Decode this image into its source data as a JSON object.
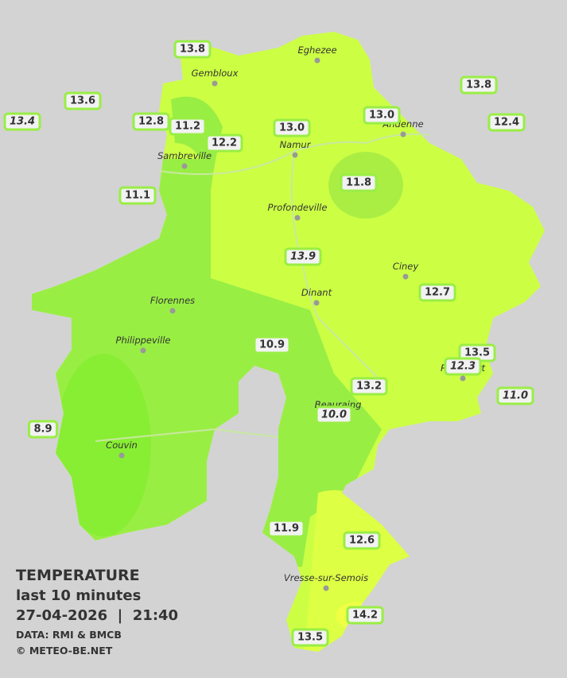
{
  "legend": {
    "title": "TEMPERATURE",
    "subtitle": "last 10 minutes",
    "datetime": "27-04-2026  |  21:40",
    "source": "DATA: RMI & BMCB",
    "copyright": "© METEO-BE.NET"
  },
  "towns": [
    "Eghezee",
    "Gembloux",
    "Andenne",
    "Namur",
    "Sambreville",
    "Profondeville",
    "Ciney",
    "Dinant",
    "Florennes",
    "Philippeville",
    "Rochefort",
    "Beauraing",
    "Couvin",
    "Vresse-sur-Semois"
  ],
  "stations": [
    {
      "label": "13.8",
      "italic": false
    },
    {
      "label": "13.6",
      "italic": false
    },
    {
      "label": "13.4",
      "italic": true
    },
    {
      "label": "12.8",
      "italic": false
    },
    {
      "label": "11.2",
      "italic": false
    },
    {
      "label": "12.2",
      "italic": false
    },
    {
      "label": "13.0",
      "italic": false
    },
    {
      "label": "13.0",
      "italic": false
    },
    {
      "label": "13.8",
      "italic": false
    },
    {
      "label": "12.4",
      "italic": false
    },
    {
      "label": "11.1",
      "italic": false
    },
    {
      "label": "11.8",
      "italic": false
    },
    {
      "label": "13.9",
      "italic": true
    },
    {
      "label": "12.7",
      "italic": false
    },
    {
      "label": "10.9",
      "italic": false
    },
    {
      "label": "13.5",
      "italic": false
    },
    {
      "label": "12.3",
      "italic": true
    },
    {
      "label": "11.0",
      "italic": true
    },
    {
      "label": "13.2",
      "italic": false
    },
    {
      "label": "10.0",
      "italic": true
    },
    {
      "label": "8.9",
      "italic": false
    },
    {
      "label": "11.9",
      "italic": false
    },
    {
      "label": "12.6",
      "italic": false
    },
    {
      "label": "14.2",
      "italic": false
    },
    {
      "label": "13.5",
      "italic": false
    }
  ]
}
